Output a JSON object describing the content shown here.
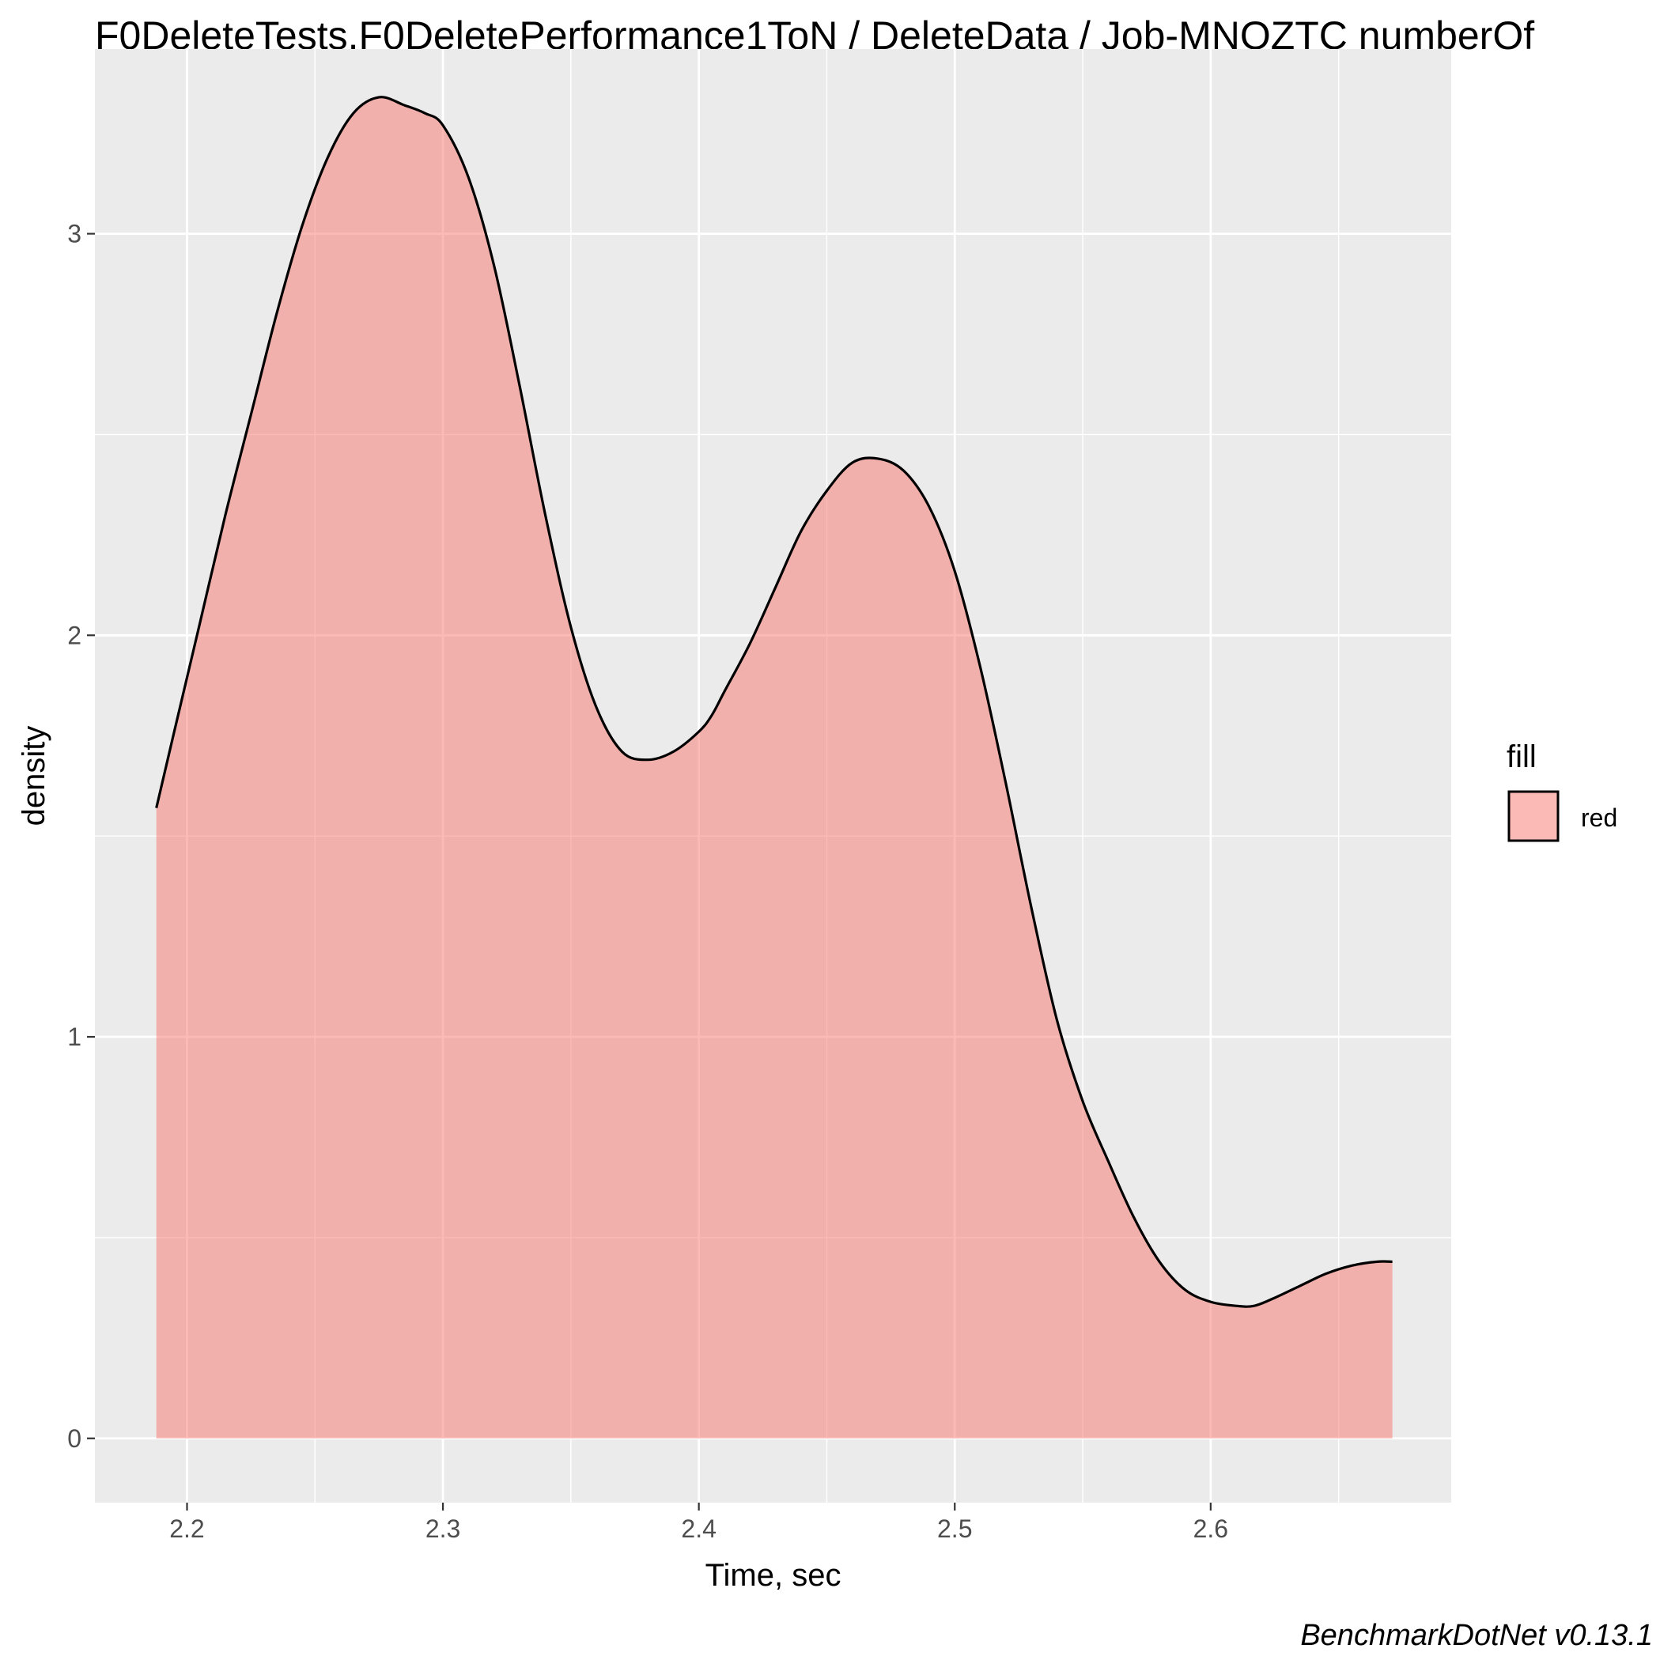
{
  "chart_data": {
    "type": "area",
    "title": "F0DeleteTests.F0DeletePerformance1ToN / DeleteData / Job-MNOZTC numberOf",
    "xlabel": "Time, sec",
    "ylabel": "density",
    "caption": "BenchmarkDotNet v0.13.1",
    "xlim": [
      2.164,
      2.694
    ],
    "ylim": [
      -0.16,
      3.46
    ],
    "x_ticks": [
      2.2,
      2.3,
      2.4,
      2.5,
      2.6
    ],
    "x_tick_labels": [
      "2.2",
      "2.3",
      "2.4",
      "2.5",
      "2.6"
    ],
    "y_ticks": [
      0,
      1,
      2,
      3
    ],
    "y_tick_labels": [
      "0",
      "1",
      "2",
      "3"
    ],
    "grid": true,
    "legend": {
      "title": "fill",
      "position": "right",
      "entries": [
        {
          "label": "red",
          "color": "#F8766D"
        }
      ]
    },
    "fill_color": "#F8766D",
    "fill_opacity": 0.5,
    "line_color": "#000000",
    "panel_background": "#EBEBEB",
    "series": [
      {
        "x": [
          2.188,
          2.195,
          2.205,
          2.215,
          2.225,
          2.235,
          2.245,
          2.255,
          2.265,
          2.275,
          2.285,
          2.293,
          2.3,
          2.31,
          2.32,
          2.33,
          2.34,
          2.35,
          2.36,
          2.37,
          2.38,
          2.39,
          2.4,
          2.405,
          2.41,
          2.42,
          2.43,
          2.44,
          2.45,
          2.46,
          2.47,
          2.48,
          2.49,
          2.5,
          2.51,
          2.52,
          2.53,
          2.54,
          2.55,
          2.56,
          2.57,
          2.58,
          2.59,
          2.6,
          2.61,
          2.617,
          2.625,
          2.635,
          2.645,
          2.655,
          2.665,
          2.671
        ],
        "y": [
          1.57,
          1.76,
          2.03,
          2.3,
          2.55,
          2.8,
          3.02,
          3.19,
          3.3,
          3.34,
          3.32,
          3.3,
          3.27,
          3.14,
          2.92,
          2.62,
          2.3,
          2.02,
          1.82,
          1.71,
          1.69,
          1.71,
          1.76,
          1.8,
          1.86,
          1.98,
          2.12,
          2.26,
          2.36,
          2.43,
          2.44,
          2.41,
          2.32,
          2.16,
          1.92,
          1.63,
          1.32,
          1.04,
          0.84,
          0.69,
          0.55,
          0.44,
          0.37,
          0.34,
          0.33,
          0.33,
          0.35,
          0.38,
          0.41,
          0.43,
          0.44,
          0.44
        ]
      }
    ]
  }
}
